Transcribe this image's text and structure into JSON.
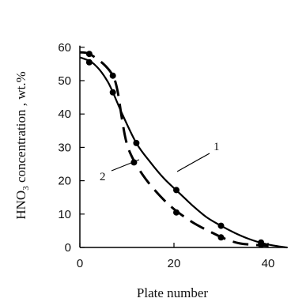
{
  "chart_data": {
    "type": "line",
    "xlabel": "Plate number",
    "ylabel_parts": {
      "prefix": "HNO",
      "subscript": "3",
      "suffix": " concentration , wt.%"
    },
    "xlim": [
      0,
      45
    ],
    "ylim": [
      0,
      60
    ],
    "xticks": [
      0,
      20,
      40
    ],
    "yticks": [
      0,
      10,
      20,
      30,
      40,
      50,
      60
    ],
    "grid": false,
    "legend": "none",
    "series": [
      {
        "name": "1",
        "style": "solid",
        "points": [
          [
            2,
            55.5
          ],
          [
            7,
            46.5
          ],
          [
            12,
            31.3
          ],
          [
            20.5,
            17.2
          ],
          [
            30,
            6.5
          ],
          [
            38.5,
            1.5
          ]
        ],
        "curve": [
          [
            0,
            57
          ],
          [
            3,
            55
          ],
          [
            6,
            49.5
          ],
          [
            9,
            40
          ],
          [
            12,
            31.3
          ],
          [
            15,
            25.5
          ],
          [
            18,
            20.5
          ],
          [
            21,
            16.5
          ],
          [
            24,
            12.5
          ],
          [
            27,
            9
          ],
          [
            30,
            6.5
          ],
          [
            33,
            4.3
          ],
          [
            36,
            2.5
          ],
          [
            39,
            1.2
          ],
          [
            42,
            0.4
          ],
          [
            44,
            0
          ]
        ]
      },
      {
        "name": "2",
        "style": "dashed",
        "points": [
          [
            2,
            58
          ],
          [
            7,
            51.5
          ],
          [
            11.5,
            25.5
          ],
          [
            20.5,
            10.5
          ],
          [
            30,
            3
          ],
          [
            38.5,
            0.8
          ]
        ],
        "curve": [
          [
            0,
            58.5
          ],
          [
            2,
            58
          ],
          [
            5,
            55
          ],
          [
            7,
            51.5
          ],
          [
            8,
            47
          ],
          [
            9,
            38
          ],
          [
            10,
            31
          ],
          [
            11.5,
            26
          ],
          [
            14,
            20.5
          ],
          [
            17,
            15.5
          ],
          [
            20,
            11.5
          ],
          [
            24,
            7.5
          ],
          [
            28,
            4.5
          ],
          [
            31,
            2.5
          ],
          [
            34,
            1.2
          ],
          [
            37,
            0.8
          ],
          [
            40,
            0.5
          ]
        ]
      }
    ],
    "annotations": [
      {
        "text": "1",
        "series": "1"
      },
      {
        "text": "2",
        "series": "2"
      }
    ]
  }
}
